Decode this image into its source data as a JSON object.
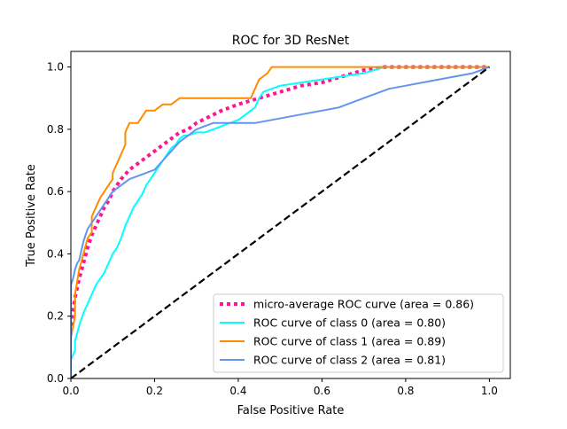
{
  "chart_data": {
    "type": "line",
    "title": "ROC for 3D ResNet",
    "xlabel": "False Positive Rate",
    "ylabel": "True Positive Rate",
    "xlim": [
      0.0,
      1.05
    ],
    "ylim": [
      0.0,
      1.05
    ],
    "xticks": [
      0.0,
      0.2,
      0.4,
      0.6,
      0.8,
      1.0
    ],
    "yticks": [
      0.0,
      0.2,
      0.4,
      0.6,
      0.8,
      1.0
    ],
    "xtick_labels": [
      "0.0",
      "0.2",
      "0.4",
      "0.6",
      "0.8",
      "1.0"
    ],
    "ytick_labels": [
      "0.0",
      "0.2",
      "0.4",
      "0.6",
      "0.8",
      "1.0"
    ],
    "grid": false,
    "legend_position": "lower-right",
    "series": [
      {
        "name": "micro-average ROC curve (area = 0.86)",
        "color": "#ff1493",
        "style": "dotted",
        "x": [
          0.0,
          0.005,
          0.01,
          0.02,
          0.03,
          0.04,
          0.05,
          0.06,
          0.07,
          0.08,
          0.09,
          0.1,
          0.12,
          0.14,
          0.16,
          0.18,
          0.2,
          0.22,
          0.24,
          0.26,
          0.28,
          0.3,
          0.33,
          0.36,
          0.4,
          0.45,
          0.5,
          0.55,
          0.6,
          0.65,
          0.7,
          0.75,
          0.8,
          0.9,
          1.0
        ],
        "y": [
          0.17,
          0.22,
          0.26,
          0.32,
          0.37,
          0.42,
          0.46,
          0.49,
          0.52,
          0.55,
          0.57,
          0.6,
          0.64,
          0.67,
          0.69,
          0.71,
          0.73,
          0.75,
          0.77,
          0.79,
          0.8,
          0.82,
          0.84,
          0.86,
          0.88,
          0.9,
          0.92,
          0.94,
          0.95,
          0.97,
          0.99,
          1.0,
          1.0,
          1.0,
          1.0
        ]
      },
      {
        "name": "ROC curve of class 0 (area = 0.80)",
        "color": "#00ffff",
        "style": "solid",
        "x": [
          0.0,
          0.0,
          0.01,
          0.01,
          0.02,
          0.03,
          0.04,
          0.05,
          0.06,
          0.07,
          0.08,
          0.09,
          0.1,
          0.11,
          0.12,
          0.13,
          0.14,
          0.15,
          0.16,
          0.17,
          0.18,
          0.19,
          0.2,
          0.21,
          0.22,
          0.23,
          0.24,
          0.25,
          0.26,
          0.27,
          0.28,
          0.3,
          0.32,
          0.34,
          0.36,
          0.38,
          0.4,
          0.42,
          0.44,
          0.45,
          0.46,
          0.48,
          0.5,
          0.55,
          0.6,
          0.65,
          0.7,
          0.75,
          0.8,
          0.9,
          1.0
        ],
        "y": [
          0.0,
          0.06,
          0.09,
          0.12,
          0.17,
          0.21,
          0.24,
          0.27,
          0.3,
          0.32,
          0.34,
          0.37,
          0.4,
          0.42,
          0.45,
          0.49,
          0.52,
          0.55,
          0.57,
          0.59,
          0.62,
          0.64,
          0.66,
          0.68,
          0.7,
          0.72,
          0.74,
          0.75,
          0.77,
          0.78,
          0.78,
          0.79,
          0.79,
          0.8,
          0.81,
          0.82,
          0.83,
          0.85,
          0.87,
          0.9,
          0.92,
          0.93,
          0.94,
          0.95,
          0.96,
          0.97,
          0.98,
          1.0,
          1.0,
          1.0,
          1.0
        ]
      },
      {
        "name": "ROC curve of class 1 (area = 0.89)",
        "color": "#ff8c00",
        "style": "solid",
        "x": [
          0.0,
          0.0,
          0.01,
          0.01,
          0.02,
          0.03,
          0.04,
          0.05,
          0.05,
          0.06,
          0.07,
          0.08,
          0.09,
          0.1,
          0.1,
          0.11,
          0.12,
          0.13,
          0.13,
          0.14,
          0.16,
          0.17,
          0.18,
          0.2,
          0.22,
          0.24,
          0.26,
          0.28,
          0.3,
          0.35,
          0.4,
          0.43,
          0.44,
          0.45,
          0.46,
          0.47,
          0.48,
          0.5,
          0.6,
          0.7,
          0.75,
          0.8,
          0.9,
          1.0
        ],
        "y": [
          0.0,
          0.13,
          0.2,
          0.27,
          0.35,
          0.4,
          0.45,
          0.47,
          0.52,
          0.55,
          0.58,
          0.6,
          0.62,
          0.64,
          0.66,
          0.69,
          0.72,
          0.75,
          0.79,
          0.82,
          0.82,
          0.84,
          0.86,
          0.86,
          0.88,
          0.88,
          0.9,
          0.9,
          0.9,
          0.9,
          0.9,
          0.9,
          0.93,
          0.96,
          0.97,
          0.98,
          1.0,
          1.0,
          1.0,
          1.0,
          1.0,
          1.0,
          1.0,
          1.0
        ]
      },
      {
        "name": "ROC curve of class 2 (area = 0.81)",
        "color": "#6495ed",
        "style": "solid",
        "x": [
          0.0,
          0.0,
          0.005,
          0.01,
          0.015,
          0.02,
          0.025,
          0.03,
          0.035,
          0.04,
          0.05,
          0.06,
          0.07,
          0.08,
          0.09,
          0.1,
          0.12,
          0.14,
          0.16,
          0.18,
          0.2,
          0.22,
          0.24,
          0.26,
          0.28,
          0.3,
          0.32,
          0.34,
          0.36,
          0.38,
          0.4,
          0.44,
          0.48,
          0.52,
          0.56,
          0.6,
          0.64,
          0.68,
          0.72,
          0.76,
          0.8,
          0.84,
          0.88,
          0.92,
          0.96,
          1.0
        ],
        "y": [
          0.0,
          0.3,
          0.32,
          0.35,
          0.37,
          0.38,
          0.41,
          0.44,
          0.46,
          0.48,
          0.5,
          0.52,
          0.54,
          0.56,
          0.58,
          0.6,
          0.62,
          0.64,
          0.65,
          0.66,
          0.67,
          0.7,
          0.73,
          0.76,
          0.78,
          0.8,
          0.81,
          0.82,
          0.82,
          0.82,
          0.82,
          0.82,
          0.83,
          0.84,
          0.85,
          0.86,
          0.87,
          0.89,
          0.91,
          0.93,
          0.94,
          0.95,
          0.96,
          0.97,
          0.98,
          1.0
        ]
      },
      {
        "name": "",
        "color": "#000000",
        "style": "dashed",
        "x": [
          0.0,
          1.0
        ],
        "y": [
          0.0,
          1.0
        ]
      }
    ]
  }
}
